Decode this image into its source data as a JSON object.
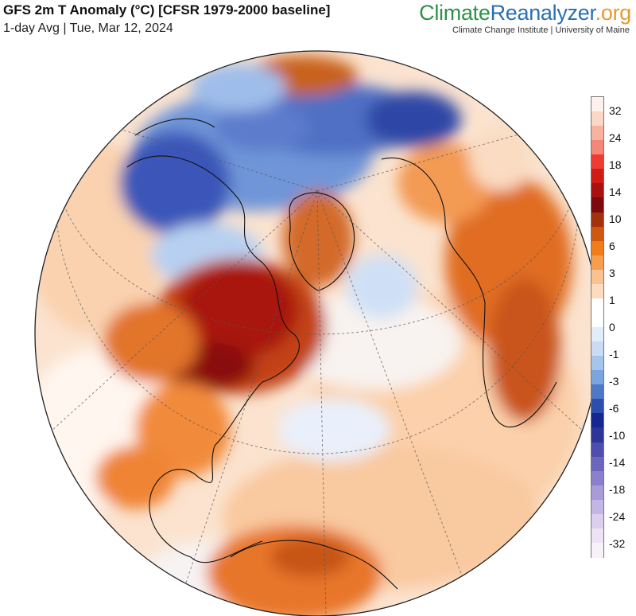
{
  "header": {
    "title": "GFS 2m T Anomaly (°C) [CFSR 1979-2000 baseline]",
    "subtitle": "1-day Avg | Tue, Mar 12, 2024"
  },
  "brand": {
    "part1": "Climate",
    "part2": "Reanalyzer",
    "part3": ".org",
    "tagline": "Climate Change Institute | University of Maine",
    "colors": {
      "part1": "#2f9148",
      "part2": "#2a6fb0",
      "part3": "#e69a2e"
    }
  },
  "map": {
    "projection": "orthographic",
    "ocean_color": "#fde9d9",
    "outline_color": "#222222"
  },
  "legend": {
    "units": "°C",
    "ticks": [
      "32",
      "24",
      "18",
      "14",
      "10",
      "6",
      "3",
      "1",
      "0",
      "-1",
      "-3",
      "-6",
      "-10",
      "-14",
      "-18",
      "-24",
      "-32"
    ],
    "colors": [
      "#fdf1ee",
      "#fbd7c8",
      "#f8b2a0",
      "#f4877a",
      "#ee3d30",
      "#d11b15",
      "#a8110f",
      "#7d0a0c",
      "#a3320c",
      "#cf5810",
      "#ee7d1a",
      "#f59e50",
      "#f8c291",
      "#fcdcbf",
      "#ffffff",
      "#ffffff",
      "#e2edfa",
      "#c9dcf4",
      "#a6c5ec",
      "#7aa6df",
      "#4f79c6",
      "#2c4fae",
      "#182691",
      "#2e3598",
      "#4e4fac",
      "#6c66bc",
      "#8c80cc",
      "#a99ad8",
      "#c4b6e4",
      "#dccfee",
      "#ede3f5",
      "#f8f1f9"
    ]
  }
}
